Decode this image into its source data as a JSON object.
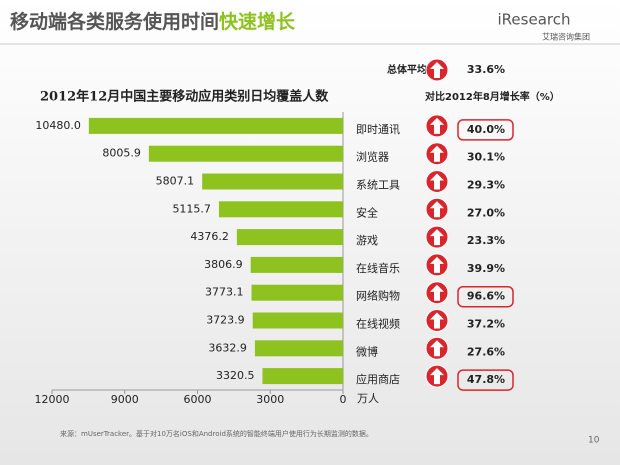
{
  "header": {
    "title": "移动端各类服务使用时间",
    "title_highlight": "快速增长",
    "logo": "iResearch",
    "logo_sub": "艾瑞咨询集团"
  },
  "average": {
    "label": "总体平均",
    "value": 33.6,
    "value_label": "33.6%"
  },
  "chart_data": {
    "type": "bar",
    "orientation": "horizontal",
    "title": "2012年12月中国主要移动应用类别日均覆盖人数",
    "categories": [
      "即时通讯",
      "浏览器",
      "系统工具",
      "安全",
      "游戏",
      "在线音乐",
      "网络购物",
      "在线视频",
      "微博",
      "应用商店"
    ],
    "values": [
      10480.0,
      8005.9,
      5807.1,
      5115.7,
      4376.2,
      3806.9,
      3773.1,
      3723.9,
      3632.9,
      3320.5
    ],
    "value_labels": [
      "10480.0",
      "8005.9",
      "5807.1",
      "5115.7",
      "4376.2",
      "3806.9",
      "3773.1",
      "3723.9",
      "3632.9",
      "3320.5"
    ],
    "color": "#8dc21f",
    "xlim": [
      0,
      12000
    ],
    "x_reversed": true,
    "xticks": [
      0,
      3000,
      6000,
      9000,
      12000
    ],
    "x_unit": "万人",
    "growth": {
      "title": "对比2012年8月增长率（%）",
      "values": [
        40.0,
        30.1,
        29.3,
        27.0,
        23.3,
        39.9,
        96.6,
        37.2,
        27.6,
        47.8
      ],
      "value_labels": [
        "40.0%",
        "30.1%",
        "29.3%",
        "27.0%",
        "23.3%",
        "39.9%",
        "96.6%",
        "37.2%",
        "27.6%",
        "47.8%"
      ],
      "highlighted": [
        true,
        false,
        false,
        false,
        false,
        false,
        true,
        false,
        false,
        true
      ],
      "highlight_color": "#d9262c"
    }
  },
  "footer": {
    "source": "来源：mUserTracker。基于对10万名iOS和Android系统的智能终端用户使用行为长期监测的数据。",
    "page": "10"
  }
}
